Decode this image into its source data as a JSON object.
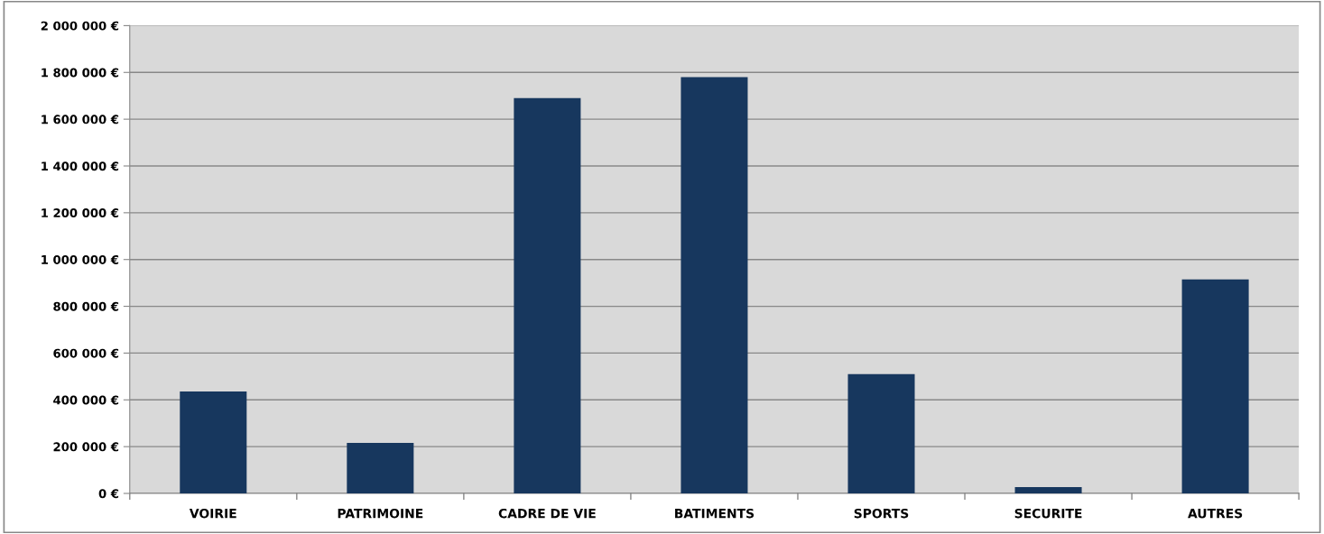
{
  "chart_data": {
    "type": "bar",
    "categories": [
      "VOIRIE",
      "PATRIMOINE",
      "CADRE DE VIE",
      "BATIMENTS",
      "SPORTS",
      "SECURITE",
      "AUTRES"
    ],
    "values": [
      436000,
      216000,
      1690000,
      1780000,
      510000,
      27000,
      915000
    ],
    "color": "#17375e",
    "ylim": [
      0,
      2000000
    ],
    "yticks": [
      {
        "value": 0,
        "label": "0 €"
      },
      {
        "value": 200000,
        "label": "200 000 €"
      },
      {
        "value": 400000,
        "label": "400 000 €"
      },
      {
        "value": 600000,
        "label": "600 000 €"
      },
      {
        "value": 800000,
        "label": "800 000 €"
      },
      {
        "value": 1000000,
        "label": "1 000 000 €"
      },
      {
        "value": 1200000,
        "label": "1 200 000 €"
      },
      {
        "value": 1400000,
        "label": "1 400 000 €"
      },
      {
        "value": 1600000,
        "label": "1 600 000 €"
      },
      {
        "value": 1800000,
        "label": "1 800 000 €"
      },
      {
        "value": 2000000,
        "label": "2 000 000 €"
      }
    ],
    "grid": "y",
    "legend": false
  }
}
